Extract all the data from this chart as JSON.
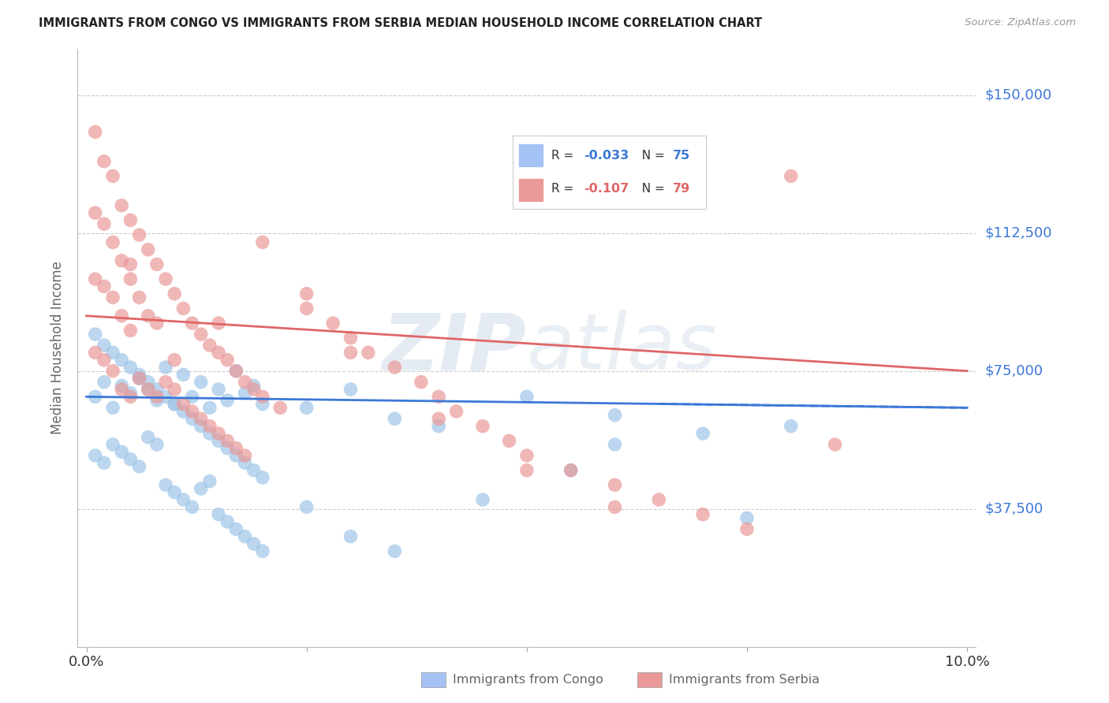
{
  "title": "IMMIGRANTS FROM CONGO VS IMMIGRANTS FROM SERBIA MEDIAN HOUSEHOLD INCOME CORRELATION CHART",
  "source": "Source: ZipAtlas.com",
  "ylabel": "Median Household Income",
  "y_ticks": [
    37500,
    75000,
    112500,
    150000
  ],
  "y_tick_labels": [
    "$37,500",
    "$75,000",
    "$112,500",
    "$150,000"
  ],
  "xlim": [
    0.0,
    0.1
  ],
  "ylim": [
    0,
    162500
  ],
  "congo_R": "-0.033",
  "congo_N": "75",
  "serbia_R": "-0.107",
  "serbia_N": "79",
  "congo_color": "#9fc5e8",
  "serbia_color": "#ea9999",
  "congo_line_color": "#3c78d8",
  "serbia_line_color": "#e06666",
  "congo_legend_color": "#a4c2f4",
  "serbia_legend_color": "#ea9999",
  "watermark": "ZIPatlas",
  "congo_scatter_x": [
    0.001,
    0.002,
    0.003,
    0.004,
    0.005,
    0.006,
    0.007,
    0.008,
    0.009,
    0.01,
    0.011,
    0.012,
    0.013,
    0.014,
    0.015,
    0.016,
    0.017,
    0.018,
    0.019,
    0.02,
    0.001,
    0.002,
    0.003,
    0.004,
    0.005,
    0.006,
    0.007,
    0.008,
    0.009,
    0.01,
    0.011,
    0.012,
    0.013,
    0.014,
    0.015,
    0.016,
    0.017,
    0.018,
    0.019,
    0.02,
    0.001,
    0.002,
    0.003,
    0.004,
    0.005,
    0.006,
    0.007,
    0.008,
    0.009,
    0.01,
    0.011,
    0.012,
    0.013,
    0.014,
    0.015,
    0.016,
    0.017,
    0.018,
    0.019,
    0.02,
    0.025,
    0.03,
    0.035,
    0.04,
    0.05,
    0.06,
    0.07,
    0.025,
    0.03,
    0.035,
    0.045,
    0.06,
    0.055,
    0.075,
    0.08
  ],
  "congo_scatter_y": [
    68000,
    72000,
    65000,
    71000,
    69000,
    73000,
    70000,
    67000,
    76000,
    66000,
    74000,
    68000,
    72000,
    65000,
    70000,
    67000,
    75000,
    69000,
    71000,
    66000,
    85000,
    82000,
    80000,
    78000,
    76000,
    74000,
    72000,
    70000,
    68000,
    66000,
    64000,
    62000,
    60000,
    58000,
    56000,
    54000,
    52000,
    50000,
    48000,
    46000,
    52000,
    50000,
    55000,
    53000,
    51000,
    49000,
    57000,
    55000,
    44000,
    42000,
    40000,
    38000,
    43000,
    45000,
    36000,
    34000,
    32000,
    30000,
    28000,
    26000,
    65000,
    70000,
    62000,
    60000,
    68000,
    63000,
    58000,
    38000,
    30000,
    26000,
    40000,
    55000,
    48000,
    35000,
    60000
  ],
  "serbia_scatter_x": [
    0.001,
    0.001,
    0.001,
    0.001,
    0.002,
    0.002,
    0.002,
    0.002,
    0.003,
    0.003,
    0.003,
    0.003,
    0.004,
    0.004,
    0.004,
    0.004,
    0.005,
    0.005,
    0.005,
    0.005,
    0.006,
    0.006,
    0.006,
    0.007,
    0.007,
    0.007,
    0.008,
    0.008,
    0.008,
    0.009,
    0.009,
    0.01,
    0.01,
    0.011,
    0.011,
    0.012,
    0.012,
    0.013,
    0.013,
    0.014,
    0.014,
    0.015,
    0.015,
    0.016,
    0.016,
    0.017,
    0.017,
    0.018,
    0.018,
    0.019,
    0.02,
    0.022,
    0.025,
    0.028,
    0.03,
    0.032,
    0.035,
    0.038,
    0.04,
    0.042,
    0.045,
    0.048,
    0.05,
    0.055,
    0.06,
    0.065,
    0.07,
    0.075,
    0.08,
    0.085,
    0.025,
    0.03,
    0.04,
    0.05,
    0.06,
    0.02,
    0.015,
    0.01,
    0.005
  ],
  "serbia_scatter_y": [
    140000,
    118000,
    100000,
    80000,
    132000,
    115000,
    98000,
    78000,
    128000,
    110000,
    95000,
    75000,
    120000,
    105000,
    90000,
    70000,
    116000,
    100000,
    86000,
    68000,
    112000,
    95000,
    73000,
    108000,
    90000,
    70000,
    104000,
    88000,
    68000,
    100000,
    72000,
    96000,
    70000,
    92000,
    66000,
    88000,
    64000,
    85000,
    62000,
    82000,
    60000,
    80000,
    58000,
    78000,
    56000,
    75000,
    54000,
    72000,
    52000,
    70000,
    68000,
    65000,
    92000,
    88000,
    84000,
    80000,
    76000,
    72000,
    68000,
    64000,
    60000,
    56000,
    52000,
    48000,
    44000,
    40000,
    36000,
    32000,
    128000,
    55000,
    96000,
    80000,
    62000,
    48000,
    38000,
    110000,
    88000,
    78000,
    104000
  ]
}
